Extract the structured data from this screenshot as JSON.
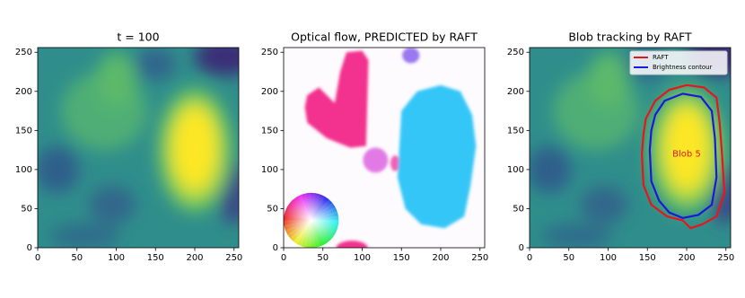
{
  "chart_data": [
    {
      "type": "image",
      "title": "t = 100",
      "xlim": [
        0,
        256
      ],
      "ylim": [
        0,
        256
      ],
      "xticks": [
        0,
        50,
        100,
        150,
        200,
        250
      ],
      "yticks": [
        0,
        50,
        100,
        150,
        200,
        250
      ]
    },
    {
      "type": "image",
      "title": "Optical flow, PREDICTED by RAFT",
      "xlim": [
        0,
        256
      ],
      "ylim": [
        0,
        256
      ],
      "xticks": [
        0,
        50,
        100,
        150,
        200,
        250
      ],
      "yticks": [
        0,
        50,
        100,
        150,
        200,
        250
      ]
    },
    {
      "type": "image",
      "title": "Blob tracking by RAFT",
      "xlim": [
        0,
        256
      ],
      "ylim": [
        0,
        256
      ],
      "xticks": [
        0,
        50,
        100,
        150,
        200,
        250
      ],
      "yticks": [
        0,
        50,
        100,
        150,
        200,
        250
      ],
      "series": [
        {
          "name": "RAFT",
          "color": "#e8161c"
        },
        {
          "name": "Brightness contour",
          "color": "#1a1ad8"
        }
      ],
      "legend": "upper right",
      "annotation": "Blob 5"
    }
  ]
}
